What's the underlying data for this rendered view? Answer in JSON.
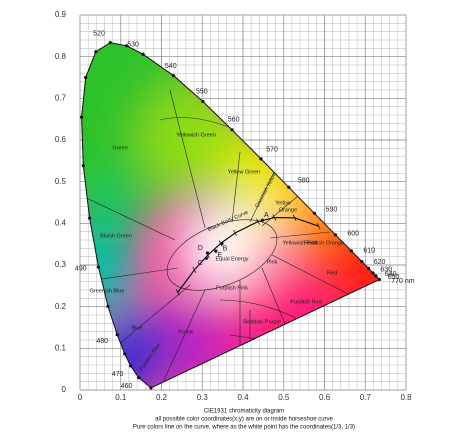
{
  "chart_data": {
    "type": "chromaticity",
    "xlim": [
      0,
      0.8
    ],
    "ylim": [
      0,
      0.9
    ],
    "xticks": [
      0,
      0.1,
      0.2,
      0.3,
      0.4,
      0.5,
      0.6,
      0.7,
      0.8
    ],
    "yticks": [
      0,
      0.1,
      0.2,
      0.3,
      0.4,
      0.5,
      0.6,
      0.7,
      0.8,
      0.9
    ],
    "grid": true,
    "minor_divisions": 5,
    "locus": {
      "x": [
        0.1741,
        0.144,
        0.1241,
        0.1096,
        0.0913,
        0.0687,
        0.0454,
        0.0235,
        0.0082,
        0.0039,
        0.0139,
        0.0389,
        0.0743,
        0.1142,
        0.1547,
        0.2296,
        0.3016,
        0.3731,
        0.4441,
        0.5125,
        0.5752,
        0.627,
        0.6658,
        0.6915,
        0.7079,
        0.719,
        0.726,
        0.7347
      ],
      "y": [
        0.005,
        0.0297,
        0.0578,
        0.0868,
        0.1327,
        0.2007,
        0.295,
        0.4127,
        0.5384,
        0.6548,
        0.7502,
        0.812,
        0.8338,
        0.8262,
        0.8059,
        0.7543,
        0.6923,
        0.6245,
        0.5547,
        0.4866,
        0.4242,
        0.3725,
        0.334,
        0.3083,
        0.292,
        0.2809,
        0.274,
        0.2653
      ],
      "labels": [
        null,
        "460",
        "470",
        null,
        "480",
        null,
        "490",
        null,
        null,
        null,
        null,
        null,
        "520",
        null,
        "530",
        "540",
        "550",
        "560",
        "570",
        "580",
        "590",
        "600",
        "610",
        "620",
        "630",
        "640",
        "650",
        "770 nm"
      ]
    },
    "blackbody": {
      "label": "Black Body Curve",
      "x": [
        0.5857,
        0.5267,
        0.477,
        0.4369,
        0.3805,
        0.3451,
        0.3135,
        0.2807,
        0.2399
      ],
      "y": [
        0.3931,
        0.4133,
        0.4137,
        0.4041,
        0.3768,
        0.3516,
        0.3236,
        0.2883,
        0.2342
      ]
    },
    "illuminants": {
      "labels": [
        "A",
        "B",
        "C",
        "D",
        "E"
      ],
      "x": [
        0.4476,
        0.3484,
        0.3101,
        0.3127,
        0.3333
      ],
      "y": [
        0.4074,
        0.3516,
        0.3162,
        0.329,
        0.3333
      ]
    },
    "regions": [
      "Green",
      "Yellowish Green",
      "Yellow Green",
      "Greenish Yellow",
      "Yellow",
      "Orange",
      "Yellowish Pink",
      "Reddish Orange",
      "Pink",
      "Red",
      "Bluish Green",
      "Greenish Blue",
      "Blue",
      "Purplish Blue",
      "Purple",
      "Purplish Pink",
      "Reddish Purple",
      "Purplish Red",
      "Equal Energy"
    ],
    "caption": [
      "CIE1931 chromaticity diagram",
      "all possible color coordinates(x,y) are on or inside horseshoe curve",
      "Pure colors line on the curve, where as the white point has the coordinates(1/3,  1/3)"
    ]
  }
}
